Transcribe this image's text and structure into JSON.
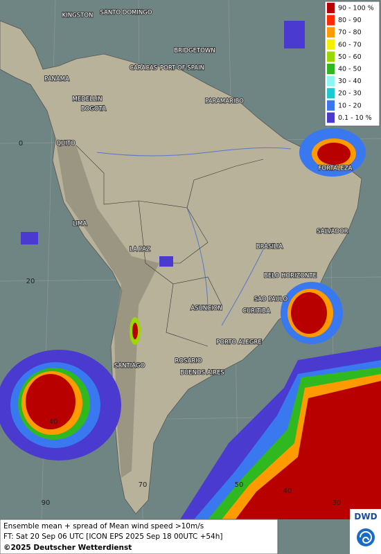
{
  "map": {
    "cities": [
      "KINGSTON",
      "SANTO DOMINGO",
      "BRIDGETOWN",
      "PANAMA",
      "CARACAS",
      "PORT OF SPAIN",
      "MEDELLIN",
      "BOGOTA",
      "PARAMARIBO",
      "QUITO",
      "FORTALEZA",
      "LIMA",
      "SALVADOR",
      "LA PAZ",
      "BRASILIA",
      "BELO HORIZONTE",
      "SAO PAULO",
      "ASUNCION",
      "CURITIBA",
      "PORTO ALEGRE",
      "ROSARIO",
      "SANTIAGO",
      "BUENOS AIRES"
    ],
    "grid_labels": [
      "0",
      "20",
      "40",
      "70",
      "90",
      "50",
      "40",
      "30"
    ]
  },
  "legend": [
    {
      "label": "90 - 100 %",
      "color": "#b80000"
    },
    {
      "label": "80 - 90",
      "color": "#ff2a00"
    },
    {
      "label": "70 - 80",
      "color": "#ff9a00"
    },
    {
      "label": "60 - 70",
      "color": "#f5f000"
    },
    {
      "label": "50 - 60",
      "color": "#9ad800"
    },
    {
      "label": "40 - 50",
      "color": "#2fb81f"
    },
    {
      "label": "30 - 40",
      "color": "#8ff5f0"
    },
    {
      "label": "20 - 30",
      "color": "#1ec8d0"
    },
    {
      "label": "10 - 20",
      "color": "#3a78f0"
    },
    {
      "label": "0.1 - 10 %",
      "color": "#4a3ad0"
    }
  ],
  "footer": {
    "line1": "Ensemble mean + spread of Mean wind speed >10m/s",
    "line2": "FT: Sat 20 Sep 06 UTC [ICON EPS 2025 Sep 18 00UTC +54h]",
    "copyright": "©2025 Deutscher Wetterdienst",
    "logo": "DWD"
  }
}
